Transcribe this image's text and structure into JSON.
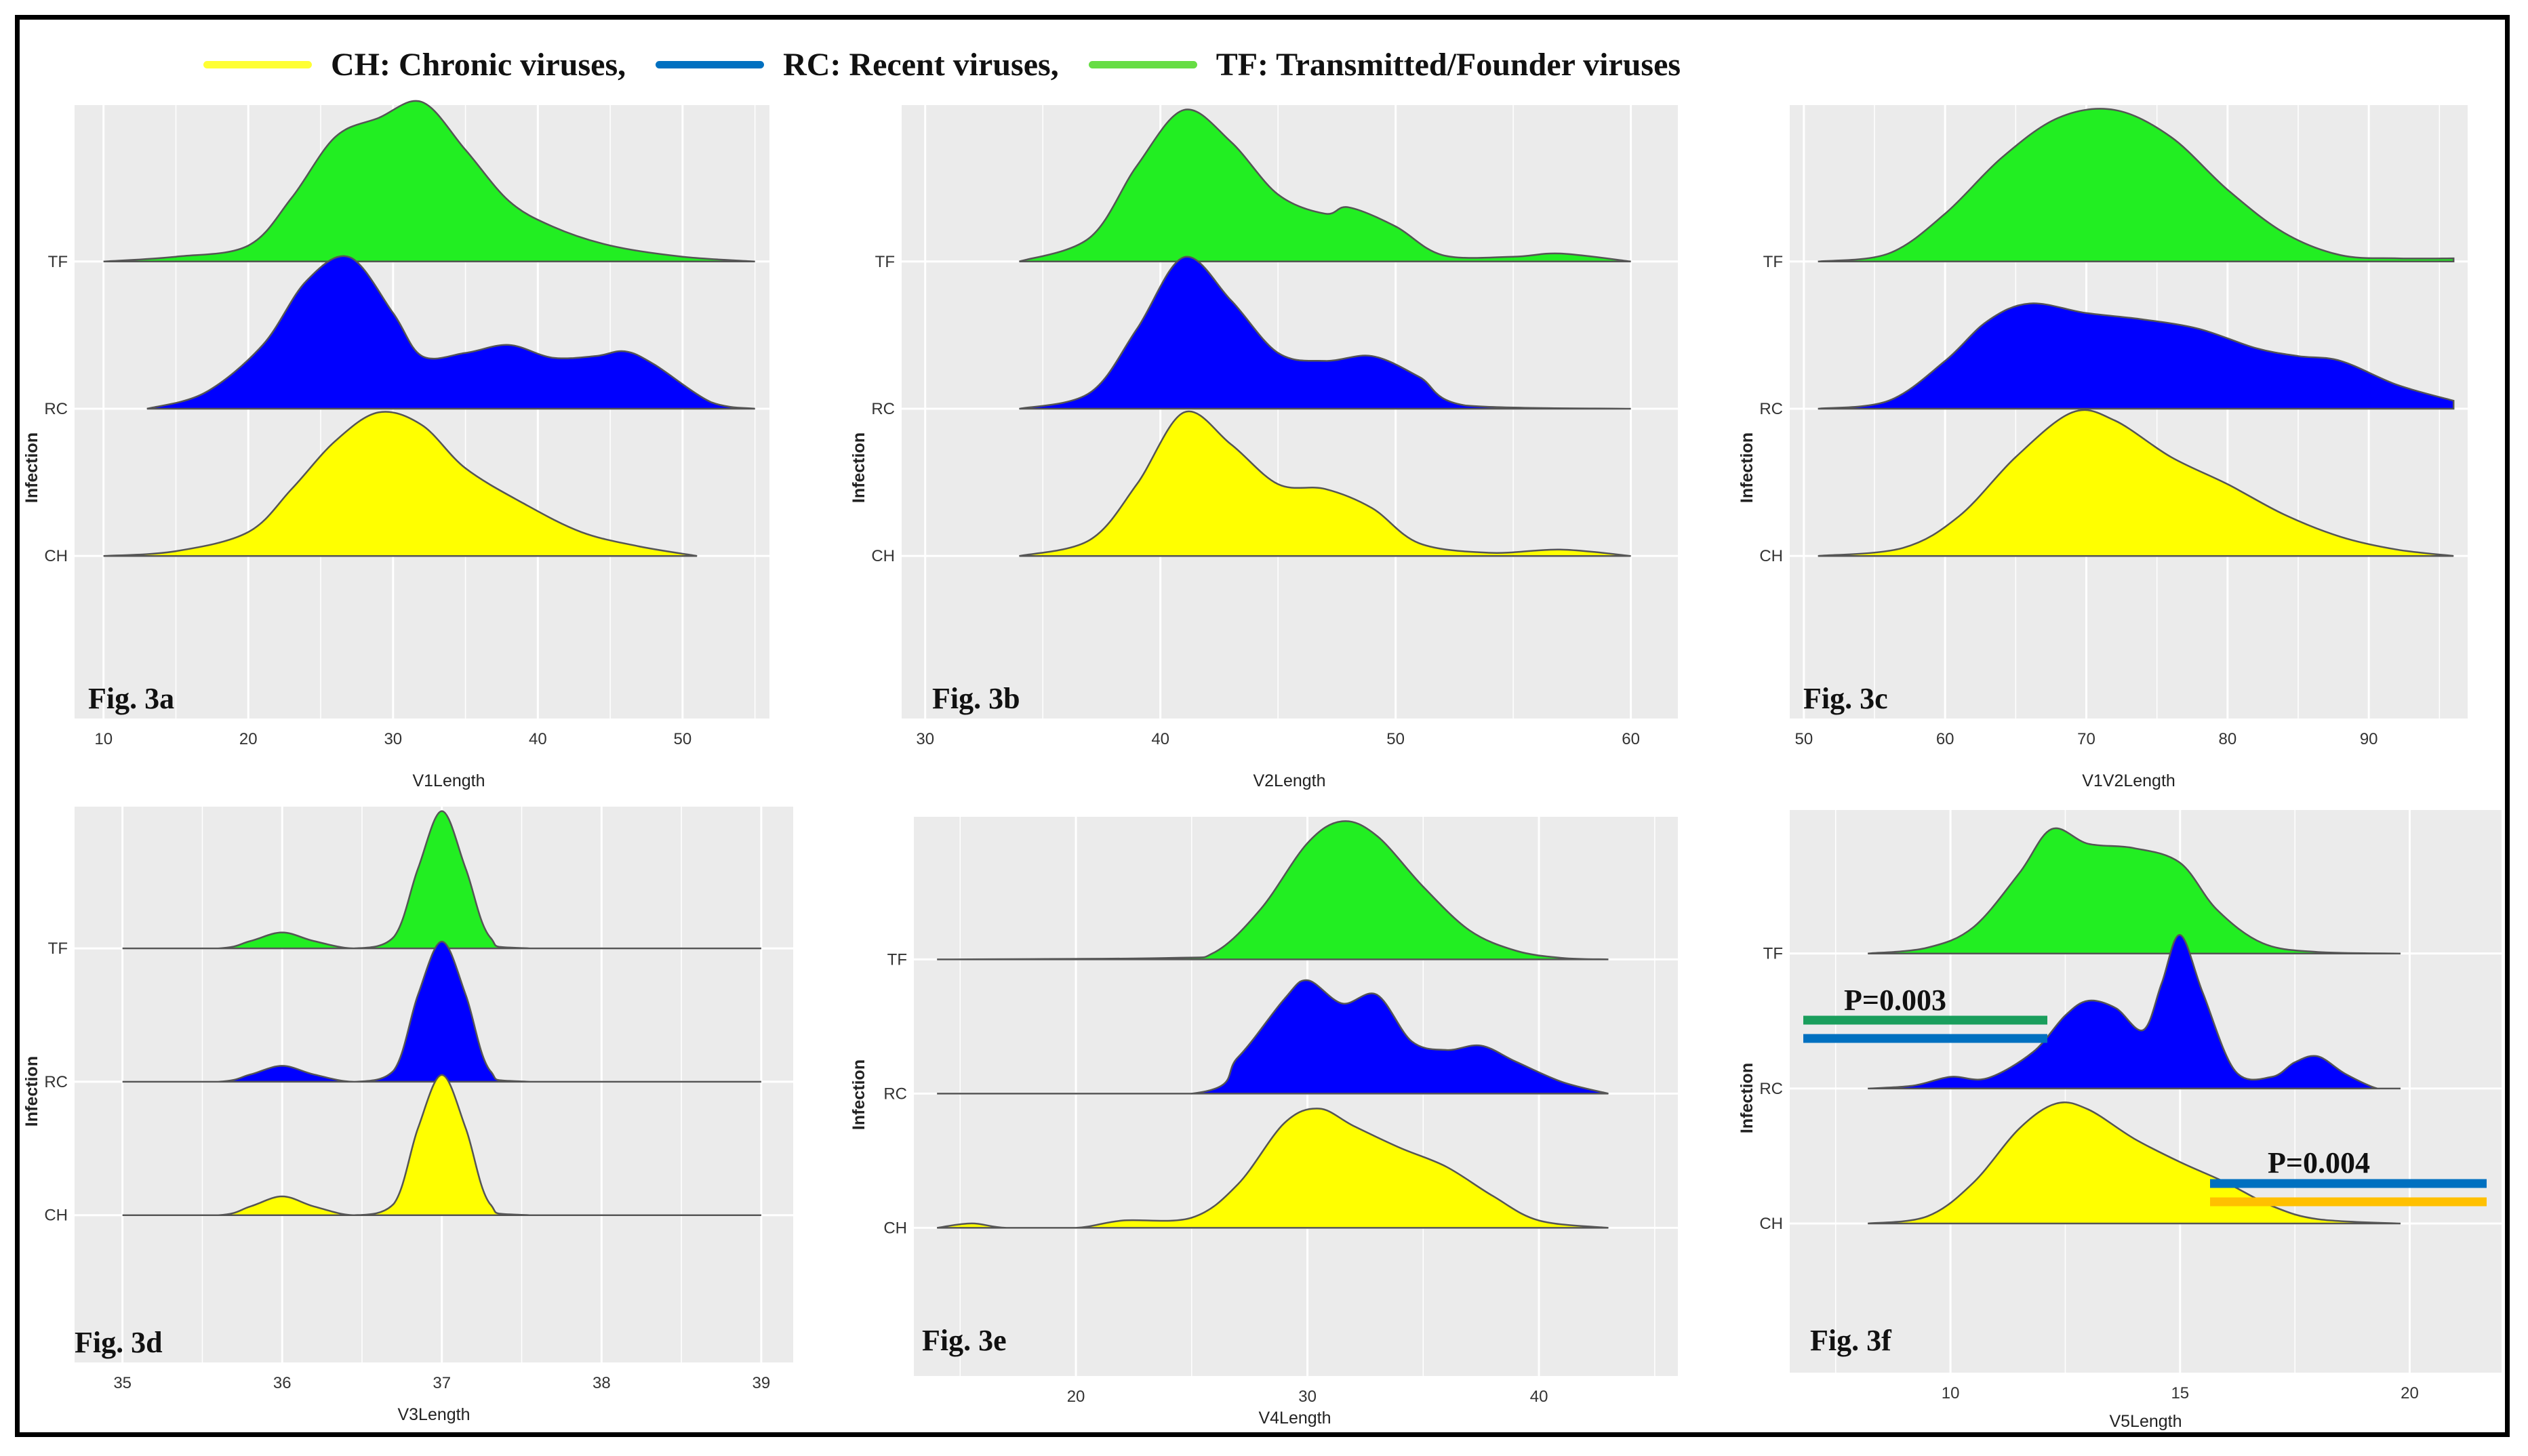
{
  "legend": {
    "items": [
      {
        "label": "CH: Chronic viruses,",
        "color": "#ffff33"
      },
      {
        "label": "RC:  Recent viruses,",
        "color": "#0070c0"
      },
      {
        "label": "TF: Transmitted/Founder viruses",
        "color": "#66dd44"
      }
    ]
  },
  "colors": {
    "CH": "#ffff00",
    "RC": "#0000ff",
    "TF": "#22ee22",
    "panel_bg": "#ebebeb",
    "grid": "#ffffff"
  },
  "chart_data": [
    {
      "type": "ridgeline",
      "figure": "Fig. 3a",
      "xlabel": "V1Length",
      "ylabel": "Infection",
      "xlim": [
        8,
        56
      ],
      "xticks": [
        10,
        20,
        30,
        40,
        50
      ],
      "categories": [
        "CH",
        "RC",
        "TF"
      ],
      "series": [
        {
          "name": "TF",
          "x": [
            10,
            15,
            20,
            23,
            26,
            29,
            32,
            35,
            38,
            41,
            45,
            50,
            55
          ],
          "density": [
            0.0,
            0.03,
            0.1,
            0.4,
            0.78,
            0.9,
            1.0,
            0.7,
            0.38,
            0.22,
            0.1,
            0.03,
            0.0
          ]
        },
        {
          "name": "RC",
          "x": [
            13,
            17,
            21,
            24,
            27,
            30,
            32,
            35,
            38,
            41,
            44,
            46,
            48,
            52,
            55
          ],
          "density": [
            0.0,
            0.1,
            0.4,
            0.8,
            0.95,
            0.6,
            0.33,
            0.35,
            0.4,
            0.32,
            0.33,
            0.36,
            0.28,
            0.04,
            0.0
          ]
        },
        {
          "name": "CH",
          "x": [
            10,
            15,
            20,
            23,
            26,
            29,
            32,
            35,
            39,
            43,
            47,
            51
          ],
          "density": [
            0.0,
            0.03,
            0.15,
            0.42,
            0.72,
            0.9,
            0.82,
            0.55,
            0.33,
            0.15,
            0.06,
            0.0
          ]
        }
      ]
    },
    {
      "type": "ridgeline",
      "figure": "Fig. 3b",
      "xlabel": "V2Length",
      "ylabel": "Infection",
      "xlim": [
        29,
        62
      ],
      "xticks": [
        30,
        40,
        50,
        60
      ],
      "categories": [
        "CH",
        "RC",
        "TF"
      ],
      "series": [
        {
          "name": "TF",
          "x": [
            34,
            37,
            39,
            41,
            43,
            45,
            47,
            48,
            50,
            52,
            55,
            57,
            60
          ],
          "density": [
            0.0,
            0.15,
            0.6,
            0.95,
            0.75,
            0.42,
            0.3,
            0.34,
            0.22,
            0.04,
            0.03,
            0.05,
            0.0
          ]
        },
        {
          "name": "RC",
          "x": [
            34,
            37,
            39,
            41,
            43,
            45,
            47,
            49,
            51,
            53,
            60
          ],
          "density": [
            0.0,
            0.1,
            0.5,
            0.95,
            0.68,
            0.35,
            0.3,
            0.33,
            0.2,
            0.02,
            0.0
          ]
        },
        {
          "name": "CH",
          "x": [
            34,
            37,
            39,
            41,
            43,
            45,
            47,
            49,
            51,
            54,
            57,
            60
          ],
          "density": [
            0.0,
            0.1,
            0.45,
            0.9,
            0.7,
            0.45,
            0.42,
            0.3,
            0.08,
            0.02,
            0.04,
            0.0
          ]
        }
      ]
    },
    {
      "type": "ridgeline",
      "figure": "Fig. 3c",
      "xlabel": "V1V2Length",
      "ylabel": "Infection",
      "xlim": [
        49,
        97
      ],
      "xticks": [
        50,
        60,
        70,
        80,
        90
      ],
      "categories": [
        "CH",
        "RC",
        "TF"
      ],
      "series": [
        {
          "name": "TF",
          "x": [
            51,
            56,
            60,
            64,
            68,
            72,
            76,
            80,
            84,
            88,
            92,
            96
          ],
          "density": [
            0.0,
            0.05,
            0.3,
            0.65,
            0.9,
            0.95,
            0.78,
            0.45,
            0.18,
            0.04,
            0.02,
            0.02
          ]
        },
        {
          "name": "RC",
          "x": [
            51,
            56,
            60,
            63,
            66,
            70,
            74,
            78,
            82,
            85,
            88,
            92,
            96
          ],
          "density": [
            0.0,
            0.05,
            0.3,
            0.55,
            0.66,
            0.6,
            0.56,
            0.5,
            0.38,
            0.33,
            0.3,
            0.15,
            0.05
          ]
        },
        {
          "name": "CH",
          "x": [
            51,
            57,
            61,
            65,
            69,
            72,
            76,
            80,
            84,
            88,
            92,
            96
          ],
          "density": [
            0.0,
            0.05,
            0.25,
            0.62,
            0.9,
            0.85,
            0.62,
            0.45,
            0.26,
            0.12,
            0.04,
            0.0
          ]
        }
      ]
    },
    {
      "type": "ridgeline",
      "figure": "Fig. 3d",
      "xlabel": "V3Length",
      "ylabel": "Infection",
      "xlim": [
        34.7,
        39.2
      ],
      "xticks": [
        35,
        36,
        37,
        38,
        39
      ],
      "categories": [
        "CH",
        "RC",
        "TF"
      ],
      "series": [
        {
          "name": "TF",
          "x": [
            35,
            35.6,
            35.8,
            36.0,
            36.2,
            36.45,
            36.7,
            36.85,
            37.0,
            37.15,
            37.3,
            37.55,
            39
          ],
          "density": [
            0.0,
            0.0,
            0.05,
            0.11,
            0.05,
            0.0,
            0.08,
            0.55,
            0.95,
            0.55,
            0.08,
            0.0,
            0.0
          ]
        },
        {
          "name": "RC",
          "x": [
            35,
            35.6,
            35.8,
            36.0,
            36.2,
            36.45,
            36.7,
            36.85,
            37.0,
            37.15,
            37.3,
            37.55,
            39
          ],
          "density": [
            0.0,
            0.0,
            0.05,
            0.11,
            0.05,
            0.0,
            0.08,
            0.6,
            0.97,
            0.6,
            0.08,
            0.0,
            0.0
          ]
        },
        {
          "name": "CH",
          "x": [
            35,
            35.6,
            35.8,
            36.0,
            36.2,
            36.45,
            36.7,
            36.85,
            37.0,
            37.15,
            37.3,
            37.55,
            39
          ],
          "density": [
            0.0,
            0.0,
            0.06,
            0.13,
            0.06,
            0.0,
            0.08,
            0.6,
            0.97,
            0.6,
            0.08,
            0.0,
            0.0
          ]
        }
      ]
    },
    {
      "type": "ridgeline",
      "figure": "Fig. 3e",
      "xlabel": "V4Length",
      "ylabel": "Infection",
      "xlim": [
        13,
        46
      ],
      "xticks": [
        20,
        30,
        40
      ],
      "categories": [
        "CH",
        "RC",
        "TF"
      ],
      "series": [
        {
          "name": "TF",
          "x": [
            14,
            24,
            26,
            28,
            30,
            31.5,
            33,
            35,
            37,
            39,
            41,
            43
          ],
          "density": [
            0.0,
            0.01,
            0.05,
            0.35,
            0.8,
            0.95,
            0.85,
            0.5,
            0.2,
            0.06,
            0.01,
            0.0
          ]
        },
        {
          "name": "RC",
          "x": [
            14,
            25,
            27,
            29,
            30,
            31.5,
            33,
            34.5,
            36,
            37.5,
            39,
            41,
            43
          ],
          "density": [
            0.0,
            0.0,
            0.25,
            0.65,
            0.78,
            0.62,
            0.68,
            0.36,
            0.3,
            0.33,
            0.22,
            0.08,
            0.0
          ]
        },
        {
          "name": "CH",
          "x": [
            14,
            15.5,
            17,
            20,
            22,
            25,
            27,
            29,
            30.5,
            32,
            34,
            36,
            38,
            40,
            43
          ],
          "density": [
            0.0,
            0.03,
            0.0,
            0.0,
            0.05,
            0.07,
            0.3,
            0.72,
            0.82,
            0.7,
            0.55,
            0.42,
            0.22,
            0.05,
            0.0
          ]
        }
      ]
    },
    {
      "type": "ridgeline",
      "figure": "Fig. 3f",
      "xlabel": "V5Length",
      "ylabel": "Infection",
      "xlim": [
        6.5,
        22
      ],
      "xticks": [
        10,
        15,
        20
      ],
      "categories": [
        "CH",
        "RC",
        "TF"
      ],
      "series": [
        {
          "name": "TF",
          "x": [
            8.2,
            9.5,
            10.5,
            11.5,
            12.2,
            13.0,
            14.0,
            15.0,
            15.8,
            16.8,
            18.0,
            19.8
          ],
          "density": [
            0.0,
            0.04,
            0.18,
            0.55,
            0.85,
            0.75,
            0.72,
            0.62,
            0.3,
            0.07,
            0.01,
            0.0
          ]
        },
        {
          "name": "RC",
          "x": [
            8.2,
            9.2,
            10.0,
            10.8,
            11.8,
            12.5,
            13.0,
            13.6,
            14.2,
            14.6,
            15.0,
            15.5,
            16.2,
            17.0,
            17.5,
            18.0,
            18.6,
            19.3,
            19.8
          ],
          "density": [
            0.0,
            0.02,
            0.08,
            0.07,
            0.25,
            0.5,
            0.6,
            0.55,
            0.4,
            0.72,
            1.05,
            0.65,
            0.12,
            0.08,
            0.18,
            0.22,
            0.1,
            0.0,
            0.0
          ]
        },
        {
          "name": "CH",
          "x": [
            8.2,
            9.5,
            10.5,
            11.5,
            12.3,
            13.0,
            14.0,
            15.0,
            16.0,
            17.0,
            18.0,
            19.8
          ],
          "density": [
            0.0,
            0.05,
            0.28,
            0.65,
            0.82,
            0.78,
            0.58,
            0.42,
            0.28,
            0.12,
            0.03,
            0.0
          ]
        }
      ]
    }
  ],
  "panels": [
    {
      "fig_label": "Fig. 3a",
      "xlabel": "V1Length",
      "ylabel": "Infection",
      "ticks": [
        "10",
        "20",
        "30",
        "40",
        "50"
      ],
      "cats": [
        "TF",
        "RC",
        "CH"
      ]
    },
    {
      "fig_label": "Fig. 3b",
      "xlabel": "V2Length",
      "ylabel": "Infection",
      "ticks": [
        "30",
        "40",
        "50",
        "60"
      ],
      "cats": [
        "TF",
        "RC",
        "CH"
      ]
    },
    {
      "fig_label": "Fig. 3c",
      "xlabel": "V1V2Length",
      "ylabel": "Infection",
      "ticks": [
        "50",
        "60",
        "70",
        "80",
        "90"
      ],
      "cats": [
        "TF",
        "RC",
        "CH"
      ]
    },
    {
      "fig_label": "Fig. 3d",
      "xlabel": "V3Length",
      "ylabel": "Infection",
      "ticks": [
        "35",
        "36",
        "37",
        "38",
        "39"
      ],
      "cats": [
        "TF",
        "RC",
        "CH"
      ]
    },
    {
      "fig_label": "Fig. 3e",
      "xlabel": "V4Length",
      "ylabel": "Infection",
      "ticks": [
        "20",
        "30",
        "40"
      ],
      "cats": [
        "TF",
        "RC",
        "CH"
      ]
    },
    {
      "fig_label": "Fig. 3f",
      "xlabel": "V5Length",
      "ylabel": "Infection",
      "ticks": [
        "10",
        "15",
        "20"
      ],
      "cats": [
        "TF",
        "RC",
        "CH"
      ]
    }
  ],
  "annotations": {
    "p1": {
      "label": "P=0.003",
      "colors": [
        "#1a9e5c",
        "#0070c0"
      ]
    },
    "p2": {
      "label": "P=0.004",
      "colors": [
        "#0070c0",
        "#ffc000"
      ]
    }
  }
}
